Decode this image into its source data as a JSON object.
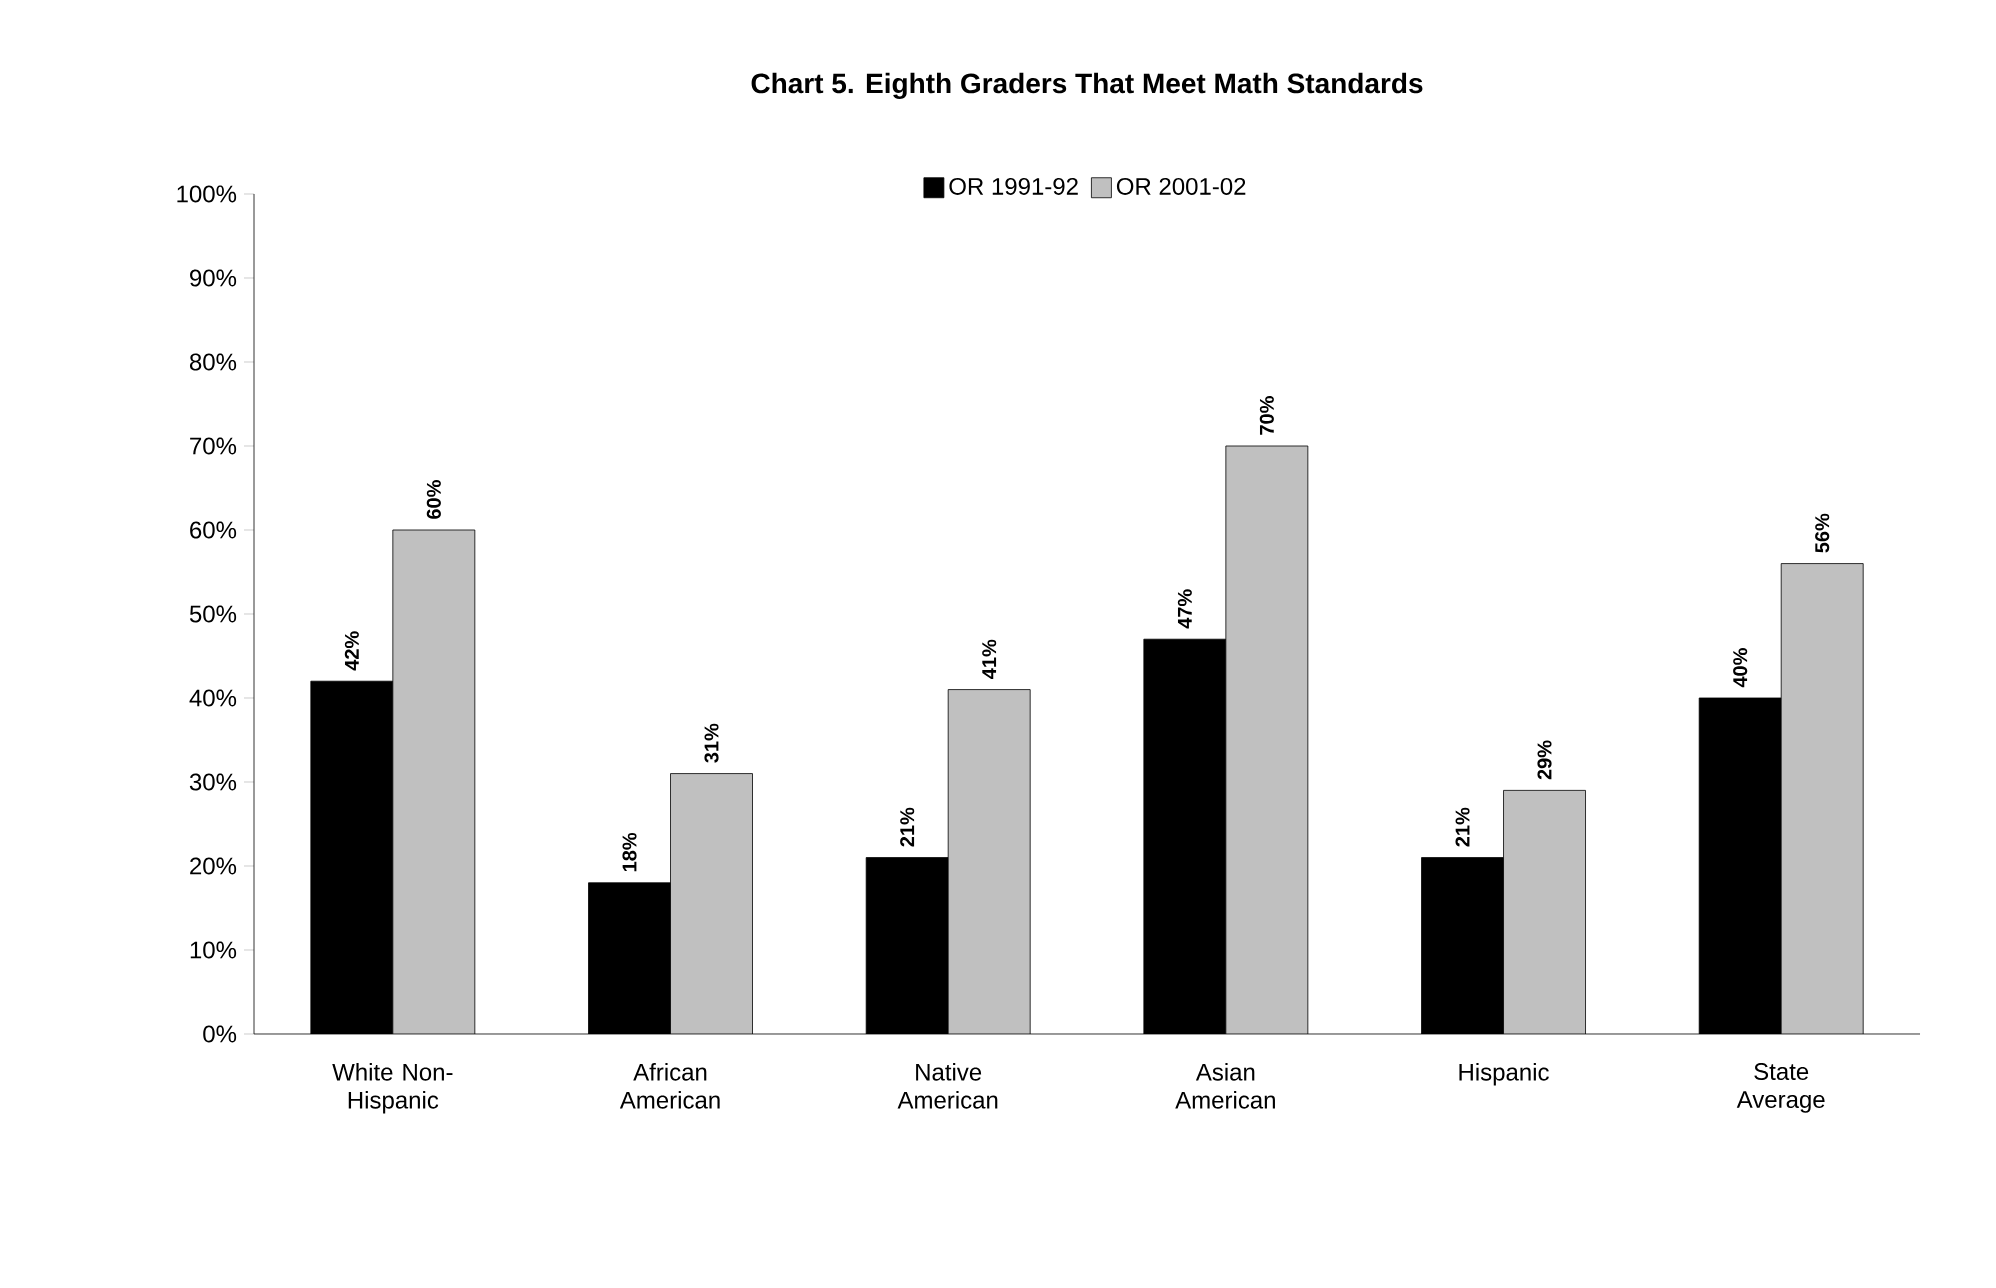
{
  "chart_data": {
    "type": "bar",
    "title": "Chart 5. Eighth Graders That Meet Math Standards",
    "categories": [
      "White Non-Hispanic",
      "African American",
      "Native American",
      "Asian American",
      "Hispanic",
      "State Average"
    ],
    "series": [
      {
        "name": "OR 1991-92",
        "color": "#000000",
        "values": [
          42,
          18,
          21,
          47,
          21,
          40
        ],
        "value_labels": [
          "42%",
          "18%",
          "21%",
          "47%",
          "21%",
          "40%"
        ]
      },
      {
        "name": "OR 2001-02",
        "color": "#c0c0c0",
        "values": [
          60,
          31,
          41,
          70,
          29,
          56
        ],
        "value_labels": [
          "60%",
          "31%",
          "41%",
          "70%",
          "29%",
          "56%"
        ]
      }
    ],
    "ylim": [
      0,
      100
    ],
    "yticks": [
      {
        "value": 0,
        "label": "0%"
      },
      {
        "value": 10,
        "label": "10%"
      },
      {
        "value": 20,
        "label": "20%"
      },
      {
        "value": 30,
        "label": "30%"
      },
      {
        "value": 40,
        "label": "40%"
      },
      {
        "value": 50,
        "label": "50%"
      },
      {
        "value": 60,
        "label": "60%"
      },
      {
        "value": 70,
        "label": "70%"
      },
      {
        "value": 80,
        "label": "80%"
      },
      {
        "value": 90,
        "label": "90%"
      },
      {
        "value": 100,
        "label": "100%"
      }
    ],
    "legend": "top",
    "grid": false
  }
}
